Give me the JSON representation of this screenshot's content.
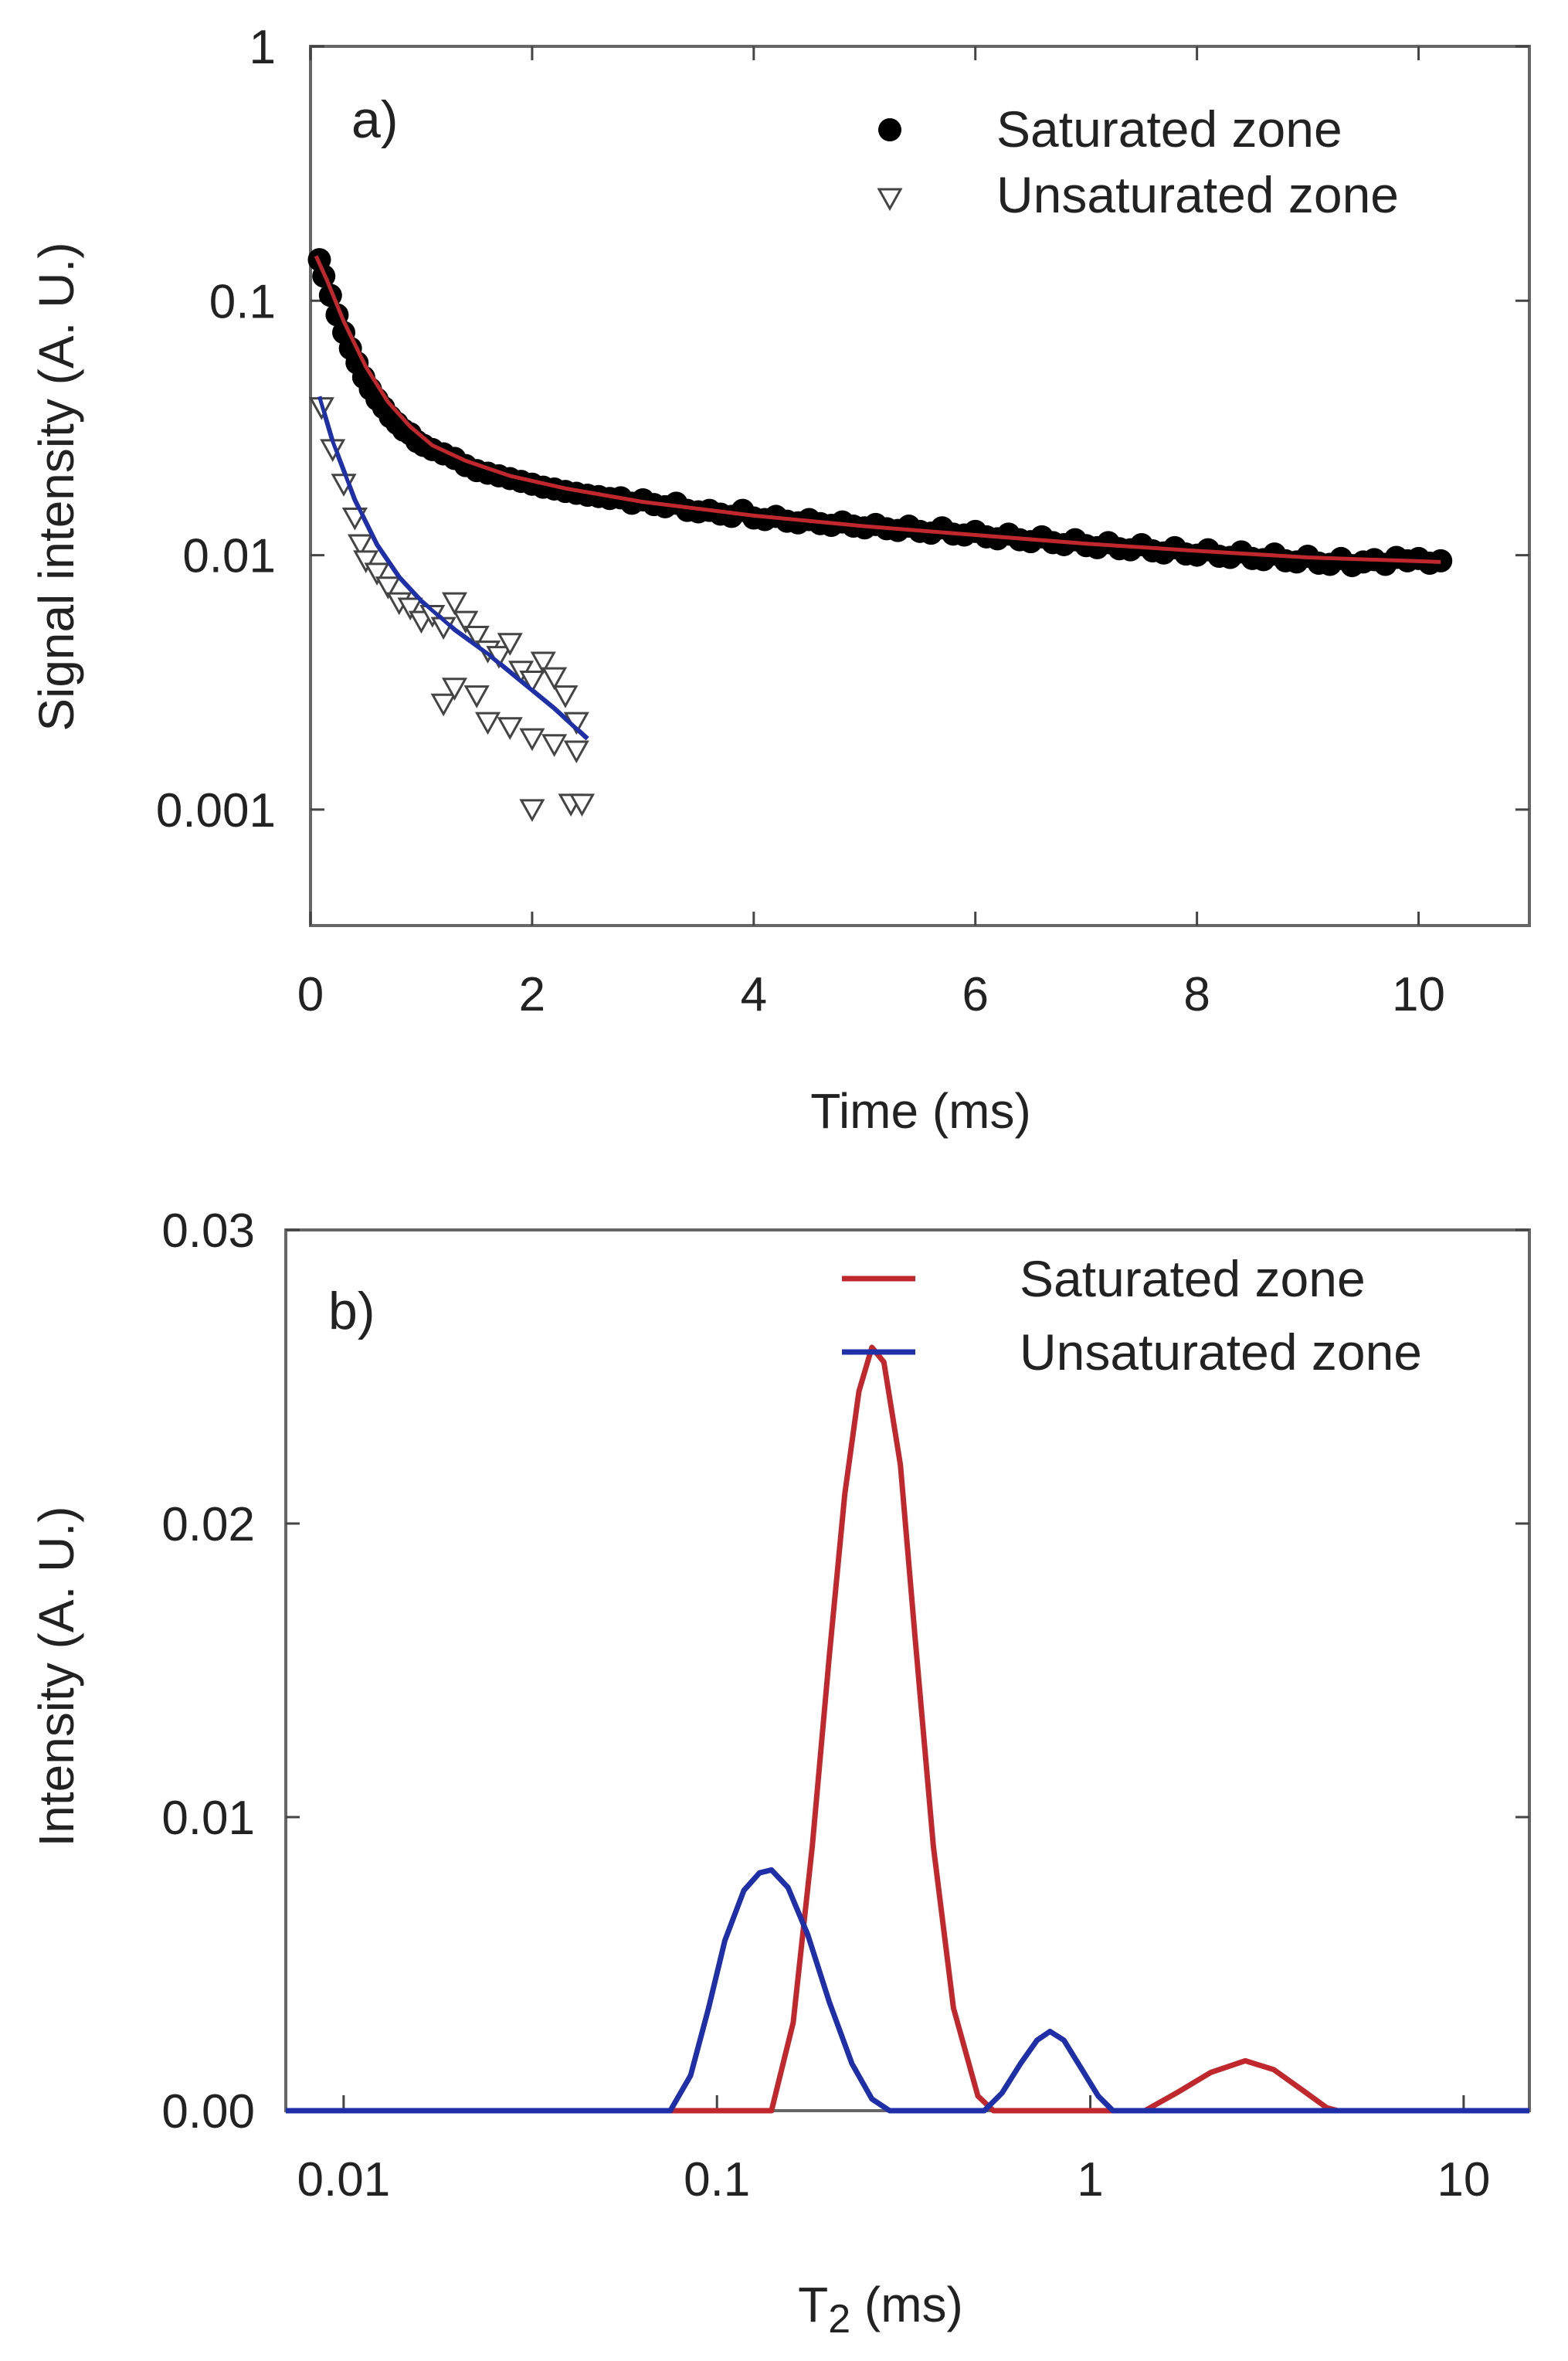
{
  "chart_data": [
    {
      "panel_label": "a)",
      "type": "scatter",
      "xlabel": "Time (ms)",
      "ylabel": "Signal intensity (A. U.)",
      "xlim": [
        0,
        11
      ],
      "ylim": [
        0.00035,
        1
      ],
      "y_scale": "log",
      "x_ticks": [
        0,
        2,
        4,
        6,
        8,
        10
      ],
      "x_tick_labels": [
        "0",
        "2",
        "4",
        "6",
        "8",
        "10"
      ],
      "y_ticks": [
        0.001,
        0.01,
        0.1,
        1
      ],
      "y_tick_labels": [
        "0.001",
        "0.01",
        "0.1",
        "1"
      ],
      "legend_position": "top-right",
      "series": [
        {
          "name": "Saturated zone",
          "marker": "filled-circle",
          "color": "#000000",
          "points": [
            [
              0.08,
              0.145
            ],
            [
              0.12,
              0.125
            ],
            [
              0.18,
              0.105
            ],
            [
              0.24,
              0.088
            ],
            [
              0.3,
              0.075
            ],
            [
              0.36,
              0.065
            ],
            [
              0.42,
              0.057
            ],
            [
              0.48,
              0.05
            ],
            [
              0.54,
              0.045
            ],
            [
              0.6,
              0.041
            ],
            [
              0.66,
              0.038
            ],
            [
              0.72,
              0.035
            ],
            [
              0.78,
              0.033
            ],
            [
              0.84,
              0.031
            ],
            [
              0.9,
              0.03
            ],
            [
              0.96,
              0.028
            ],
            [
              1.02,
              0.027
            ],
            [
              1.1,
              0.026
            ],
            [
              1.2,
              0.025
            ],
            [
              1.3,
              0.024
            ],
            [
              1.4,
              0.0225
            ],
            [
              1.5,
              0.0215
            ],
            [
              1.6,
              0.021
            ],
            [
              1.7,
              0.0205
            ],
            [
              1.8,
              0.02
            ],
            [
              1.9,
              0.0195
            ],
            [
              2.0,
              0.019
            ],
            [
              2.1,
              0.0185
            ],
            [
              2.2,
              0.0182
            ],
            [
              2.3,
              0.0178
            ],
            [
              2.4,
              0.0175
            ],
            [
              2.5,
              0.0172
            ],
            [
              2.6,
              0.017
            ],
            [
              2.7,
              0.0167
            ],
            [
              2.8,
              0.0168
            ],
            [
              2.9,
              0.016
            ],
            [
              3.0,
              0.0165
            ],
            [
              3.1,
              0.0158
            ],
            [
              3.2,
              0.0155
            ],
            [
              3.3,
              0.016
            ],
            [
              3.4,
              0.015
            ],
            [
              3.5,
              0.0148
            ],
            [
              3.6,
              0.015
            ],
            [
              3.7,
              0.0145
            ],
            [
              3.8,
              0.0142
            ],
            [
              3.9,
              0.015
            ],
            [
              4.0,
              0.014
            ],
            [
              4.1,
              0.0138
            ],
            [
              4.2,
              0.0142
            ],
            [
              4.3,
              0.0136
            ],
            [
              4.4,
              0.0134
            ],
            [
              4.5,
              0.0138
            ],
            [
              4.6,
              0.0133
            ],
            [
              4.7,
              0.0131
            ],
            [
              4.8,
              0.0135
            ],
            [
              4.9,
              0.013
            ],
            [
              5.0,
              0.0128
            ],
            [
              5.1,
              0.0132
            ],
            [
              5.2,
              0.0127
            ],
            [
              5.3,
              0.0125
            ],
            [
              5.4,
              0.013
            ],
            [
              5.5,
              0.0124
            ],
            [
              5.6,
              0.0122
            ],
            [
              5.7,
              0.0128
            ],
            [
              5.8,
              0.0121
            ],
            [
              5.9,
              0.012
            ],
            [
              6.0,
              0.0124
            ],
            [
              6.1,
              0.0118
            ],
            [
              6.2,
              0.0116
            ],
            [
              6.3,
              0.0121
            ],
            [
              6.4,
              0.0115
            ],
            [
              6.5,
              0.0113
            ],
            [
              6.6,
              0.0118
            ],
            [
              6.7,
              0.0112
            ],
            [
              6.8,
              0.011
            ],
            [
              6.9,
              0.0115
            ],
            [
              7.0,
              0.0109
            ],
            [
              7.1,
              0.0107
            ],
            [
              7.2,
              0.0112
            ],
            [
              7.3,
              0.0106
            ],
            [
              7.4,
              0.0105
            ],
            [
              7.5,
              0.011
            ],
            [
              7.6,
              0.0104
            ],
            [
              7.7,
              0.0102
            ],
            [
              7.8,
              0.0107
            ],
            [
              7.9,
              0.0101
            ],
            [
              8.0,
              0.01
            ],
            [
              8.1,
              0.0105
            ],
            [
              8.2,
              0.0099
            ],
            [
              8.3,
              0.0098
            ],
            [
              8.4,
              0.0103
            ],
            [
              8.5,
              0.0097
            ],
            [
              8.6,
              0.0096
            ],
            [
              8.7,
              0.0101
            ],
            [
              8.8,
              0.0095
            ],
            [
              8.9,
              0.0094
            ],
            [
              9.0,
              0.0099
            ],
            [
              9.1,
              0.0093
            ],
            [
              9.2,
              0.0092
            ],
            [
              9.3,
              0.0097
            ],
            [
              9.4,
              0.0091
            ],
            [
              9.5,
              0.0094
            ],
            [
              9.6,
              0.0096
            ],
            [
              9.7,
              0.0092
            ],
            [
              9.8,
              0.0098
            ],
            [
              9.9,
              0.0095
            ],
            [
              10.0,
              0.0097
            ],
            [
              10.1,
              0.0093
            ],
            [
              10.2,
              0.0095
            ]
          ]
        },
        {
          "name": "Unsaturated zone",
          "marker": "open-triangle-down",
          "color": "#444444",
          "points": [
            [
              0.1,
              0.038
            ],
            [
              0.2,
              0.026
            ],
            [
              0.3,
              0.019
            ],
            [
              0.4,
              0.014
            ],
            [
              0.45,
              0.011
            ],
            [
              0.5,
              0.0095
            ],
            [
              0.6,
              0.0085
            ],
            [
              0.7,
              0.0075
            ],
            [
              0.8,
              0.0065
            ],
            [
              0.9,
              0.0062
            ],
            [
              1.0,
              0.0055
            ],
            [
              1.1,
              0.0058
            ],
            [
              1.2,
              0.0052
            ],
            [
              1.3,
              0.0065
            ],
            [
              1.4,
              0.0055
            ],
            [
              1.5,
              0.0048
            ],
            [
              1.6,
              0.0042
            ],
            [
              1.7,
              0.004
            ],
            [
              1.8,
              0.0045
            ],
            [
              1.9,
              0.0035
            ],
            [
              2.0,
              0.0032
            ],
            [
              2.1,
              0.0038
            ],
            [
              2.2,
              0.0033
            ],
            [
              2.3,
              0.0028
            ],
            [
              2.4,
              0.0022
            ],
            [
              1.2,
              0.0026
            ],
            [
              1.3,
              0.003
            ],
            [
              1.5,
              0.0028
            ],
            [
              1.6,
              0.0022
            ],
            [
              1.8,
              0.0021
            ],
            [
              2.0,
              0.0019
            ],
            [
              2.2,
              0.0018
            ],
            [
              2.4,
              0.0017
            ],
            [
              2.0,
              0.001
            ],
            [
              2.35,
              0.00105
            ],
            [
              2.45,
              0.00105
            ]
          ]
        },
        {
          "name": "",
          "marker": "line",
          "color": "#c0282d",
          "points": [
            [
              0.05,
              0.15
            ],
            [
              0.15,
              0.12
            ],
            [
              0.3,
              0.083
            ],
            [
              0.5,
              0.055
            ],
            [
              0.7,
              0.04
            ],
            [
              0.9,
              0.032
            ],
            [
              1.1,
              0.027
            ],
            [
              1.4,
              0.0235
            ],
            [
              1.8,
              0.0205
            ],
            [
              2.3,
              0.0183
            ],
            [
              3.0,
              0.0162
            ],
            [
              4.0,
              0.0143
            ],
            [
              5.0,
              0.013
            ],
            [
              6.0,
              0.012
            ],
            [
              7.0,
              0.0111
            ],
            [
              8.0,
              0.0104
            ],
            [
              9.0,
              0.0098
            ],
            [
              10.2,
              0.0094
            ]
          ]
        },
        {
          "name": "",
          "marker": "line",
          "color": "#1f2fa8",
          "points": [
            [
              0.08,
              0.042
            ],
            [
              0.2,
              0.028
            ],
            [
              0.4,
              0.0165
            ],
            [
              0.6,
              0.011
            ],
            [
              0.8,
              0.0082
            ],
            [
              1.0,
              0.0066
            ],
            [
              1.3,
              0.0051
            ],
            [
              1.6,
              0.0041
            ],
            [
              1.9,
              0.0032
            ],
            [
              2.2,
              0.0025
            ],
            [
              2.5,
              0.0019
            ]
          ]
        }
      ]
    },
    {
      "panel_label": "b)",
      "type": "line",
      "xlabel_main": "T",
      "xlabel_sub": "2",
      "xlabel_unit": " (ms)",
      "ylabel": "Intensity (A. U.)",
      "xlim": [
        0.007,
        15
      ],
      "ylim": [
        0,
        0.03
      ],
      "x_scale": "log",
      "x_ticks": [
        0.01,
        0.1,
        1,
        10
      ],
      "x_tick_labels": [
        "0.01",
        "0.1",
        "1",
        "10"
      ],
      "y_ticks": [
        0,
        0.01,
        0.02,
        0.03
      ],
      "y_tick_labels": [
        "0.00",
        "0.01",
        "0.02",
        "0.03"
      ],
      "legend_position": "top-right",
      "series": [
        {
          "name": "Saturated zone",
          "color": "#c0282d",
          "points": [
            [
              0.007,
              0
            ],
            [
              0.14,
              0
            ],
            [
              0.16,
              0.003
            ],
            [
              0.18,
              0.009
            ],
            [
              0.2,
              0.0155
            ],
            [
              0.22,
              0.021
            ],
            [
              0.24,
              0.0245
            ],
            [
              0.26,
              0.026
            ],
            [
              0.28,
              0.0255
            ],
            [
              0.31,
              0.022
            ],
            [
              0.34,
              0.016
            ],
            [
              0.38,
              0.009
            ],
            [
              0.43,
              0.0035
            ],
            [
              0.5,
              0.0005
            ],
            [
              0.55,
              0
            ],
            [
              1.4,
              0
            ],
            [
              1.7,
              0.0006
            ],
            [
              2.1,
              0.0013
            ],
            [
              2.6,
              0.0017
            ],
            [
              3.1,
              0.0014
            ],
            [
              3.7,
              0.0007
            ],
            [
              4.3,
              0.0001
            ],
            [
              4.6,
              0
            ],
            [
              15,
              0
            ]
          ]
        },
        {
          "name": "Unsaturated zone",
          "color": "#1f2fa8",
          "points": [
            [
              0.007,
              0
            ],
            [
              0.075,
              0
            ],
            [
              0.085,
              0.0012
            ],
            [
              0.095,
              0.0035
            ],
            [
              0.105,
              0.0058
            ],
            [
              0.118,
              0.0075
            ],
            [
              0.13,
              0.0081
            ],
            [
              0.14,
              0.0082
            ],
            [
              0.155,
              0.0076
            ],
            [
              0.175,
              0.006
            ],
            [
              0.2,
              0.0037
            ],
            [
              0.23,
              0.0016
            ],
            [
              0.26,
              0.0004
            ],
            [
              0.29,
              0
            ],
            [
              0.52,
              0
            ],
            [
              0.58,
              0.0006
            ],
            [
              0.65,
              0.0016
            ],
            [
              0.72,
              0.0024
            ],
            [
              0.78,
              0.0027
            ],
            [
              0.85,
              0.0024
            ],
            [
              0.95,
              0.0014
            ],
            [
              1.05,
              0.0005
            ],
            [
              1.15,
              0
            ],
            [
              15,
              0
            ]
          ]
        }
      ]
    }
  ]
}
